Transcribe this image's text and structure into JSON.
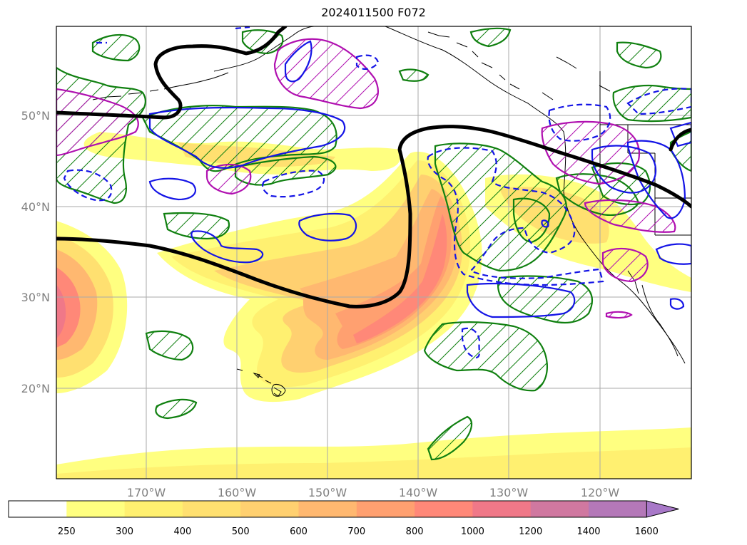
{
  "title": "2024011500 F072",
  "map": {
    "lat_labels": [
      "50°N",
      "40°N",
      "30°N",
      "20°N"
    ],
    "lon_labels": [
      "170°W",
      "160°W",
      "150°W",
      "140°W",
      "130°W",
      "120°W"
    ]
  },
  "colorbar": {
    "levels": [
      "250",
      "300",
      "400",
      "500",
      "600",
      "700",
      "800",
      "1000",
      "1200",
      "1400",
      "1600"
    ],
    "colors": [
      "#ffffff",
      "#ffff80",
      "#fff070",
      "#ffe070",
      "#ffd070",
      "#ffb870",
      "#ffa070",
      "#ff8878",
      "#f07888",
      "#d078a0",
      "#b478b8",
      "#a878c8"
    ],
    "extend": "max"
  }
}
